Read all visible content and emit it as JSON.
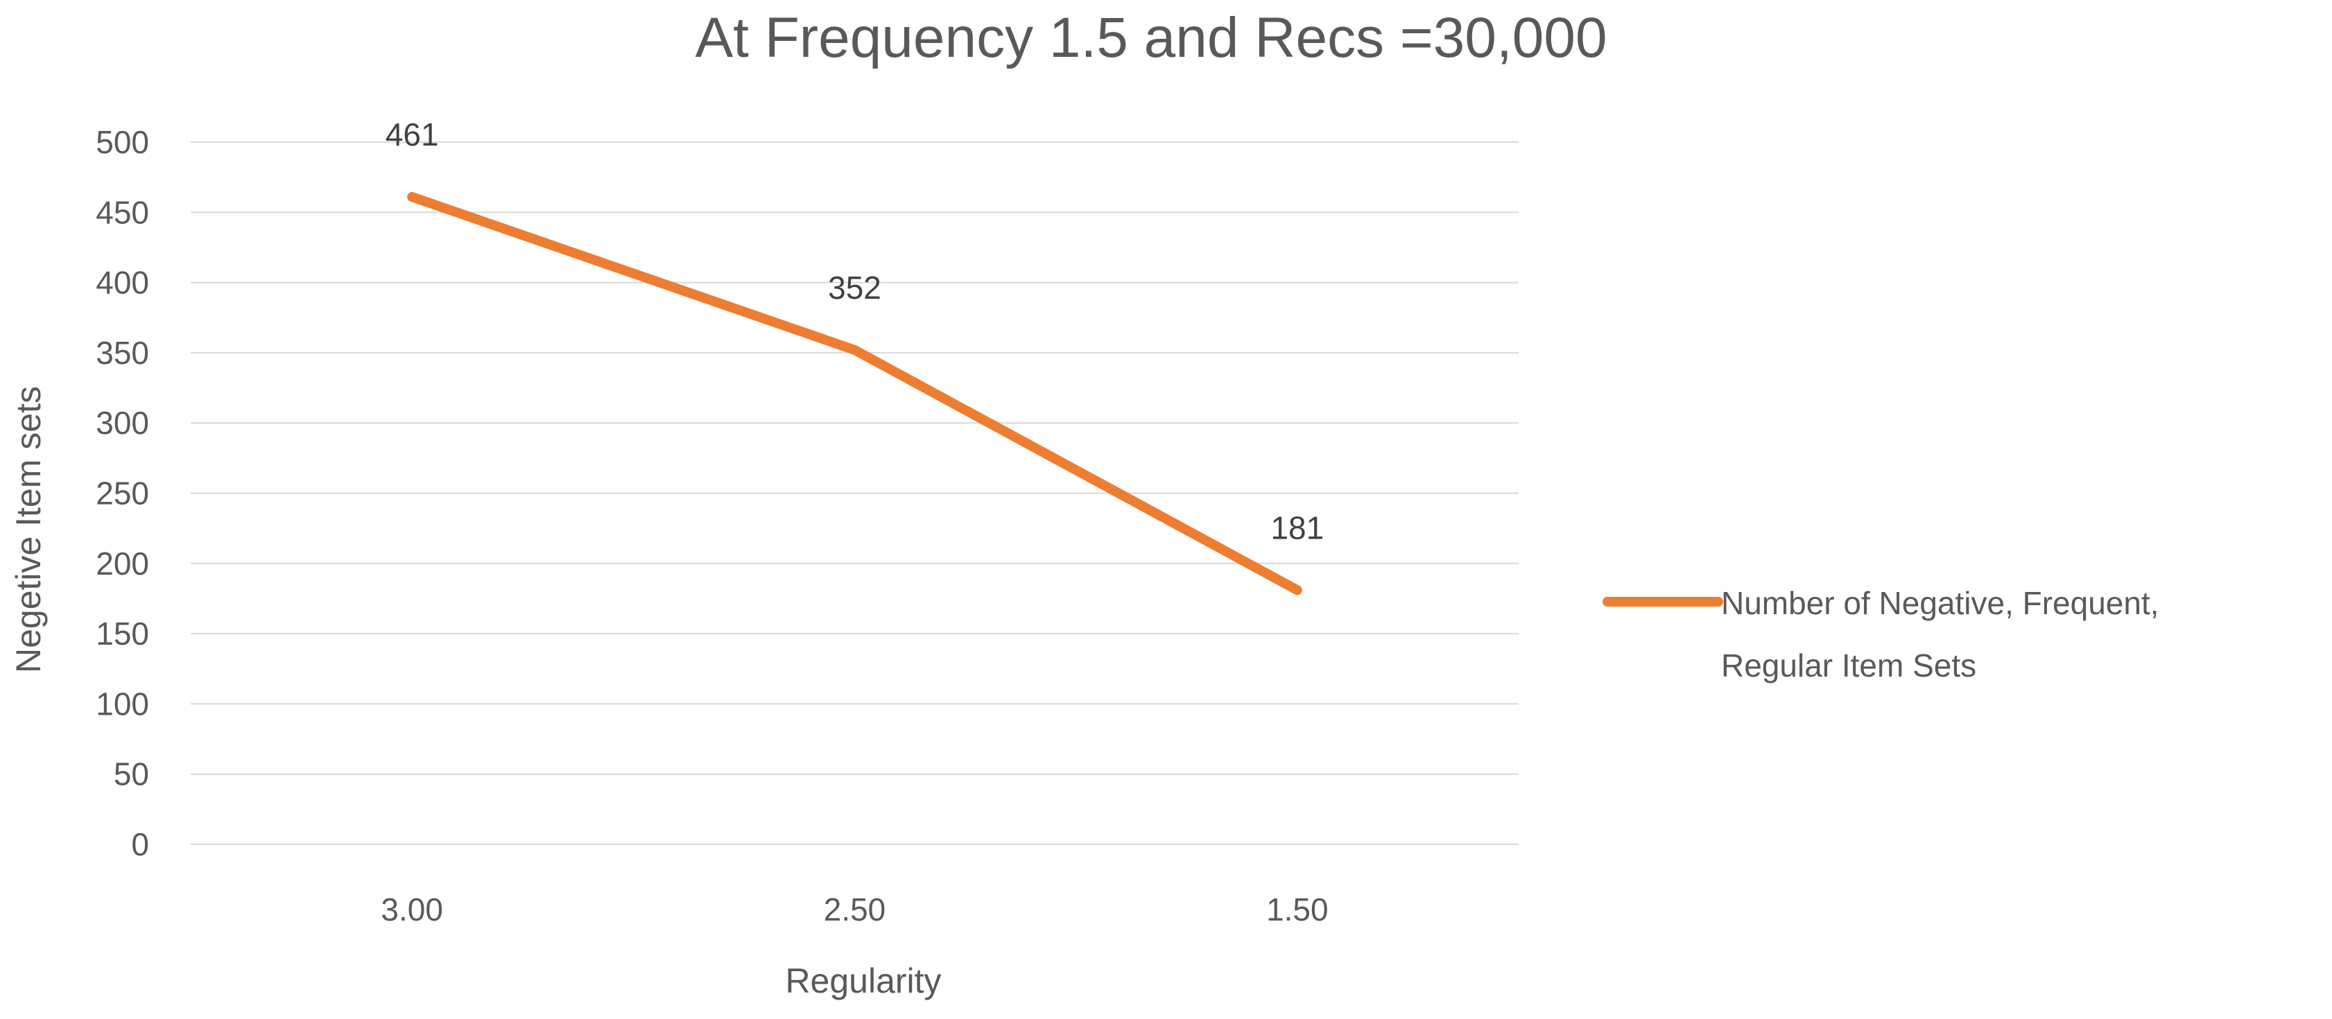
{
  "chart_data": {
    "type": "line",
    "title": "At Frequency 1.5 and Recs =30,000",
    "xlabel": "Regularity",
    "ylabel": "Negetive Item sets",
    "categories": [
      "3.00",
      "2.50",
      "1.50"
    ],
    "series": [
      {
        "name": "Number of  Negative, Frequent, Regular Item Sets",
        "legend_lines": [
          "Number of  Negative, Frequent,",
          "Regular Item Sets"
        ],
        "values": [
          461,
          352,
          181
        ],
        "data_labels": [
          "461",
          "352",
          "181"
        ],
        "color": "#ed7d31"
      }
    ],
    "ylim": [
      0,
      500
    ],
    "yticks": [
      "0",
      "50",
      "100",
      "150",
      "200",
      "250",
      "300",
      "350",
      "400",
      "450",
      "500"
    ],
    "grid": true,
    "legend_position": "right"
  }
}
